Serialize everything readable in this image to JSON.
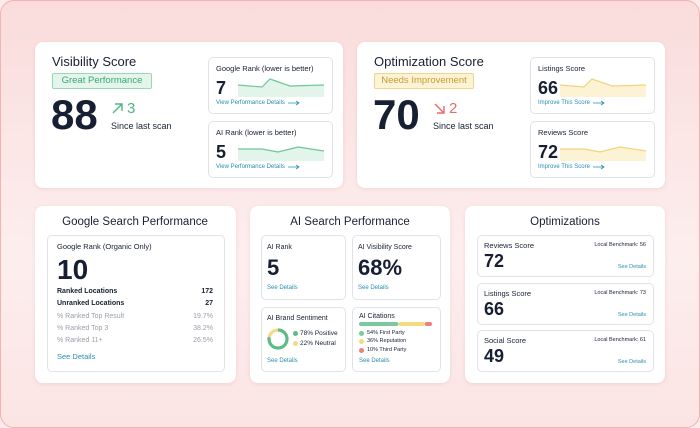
{
  "visibility": {
    "title": "Visibility Score",
    "badge": "Great Performance",
    "score": "88",
    "change": "3",
    "change_label": "Since last scan",
    "cards": [
      {
        "title": "Google Rank (lower is better)",
        "value": "7",
        "link": "View Performance Details"
      },
      {
        "title": "AI Rank (lower is better)",
        "value": "5",
        "link": "View Performance Details"
      }
    ]
  },
  "optimization": {
    "title": "Optimization Score",
    "badge": "Needs Improvement",
    "score": "70",
    "change": "2",
    "change_label": "Since last scan",
    "cards": [
      {
        "title": "Listings Score",
        "value": "66",
        "link": "Improve This Score"
      },
      {
        "title": "Reviews Score",
        "value": "72",
        "link": "Improve This Score"
      }
    ]
  },
  "google_search": {
    "title": "Google Search Performance",
    "box": {
      "title": "Google Rank (Organic Only)",
      "value": "10",
      "rows": [
        [
          "Ranked Locations",
          "172"
        ],
        [
          "Unranked Locations",
          "27"
        ],
        [
          "% Ranked Top Result",
          "19.7%"
        ],
        [
          "% Ranked Top 3",
          "38.2%"
        ],
        [
          "% Ranked 11+",
          "26.5%"
        ]
      ],
      "link": "See Details"
    }
  },
  "ai_search": {
    "title": "AI Search Performance",
    "rank": {
      "title": "AI Rank",
      "value": "5",
      "link": "See Details"
    },
    "visibility": {
      "title": "AI Visibility Score",
      "value": "68%",
      "link": "See Details"
    },
    "sentiment": {
      "title": "AI Brand Sentiment",
      "link": "See Details",
      "segments": [
        {
          "value": 78,
          "label": "78% Positive",
          "color": "#5dbb8a"
        },
        {
          "value": 22,
          "label": "22% Neutral",
          "color": "#f3d98a"
        }
      ]
    },
    "citations": {
      "title": "AI Citations",
      "link": "See Details",
      "segments": [
        {
          "value": 54,
          "label": "54% First Party",
          "color": "#7cc9a0"
        },
        {
          "value": 36,
          "label": "36% Reputation",
          "color": "#f2dc7e"
        },
        {
          "value": 10,
          "label": "10% Third Party",
          "color": "#ee7f7f"
        }
      ]
    }
  },
  "optimizations": {
    "title": "Optimizations",
    "items": [
      {
        "title": "Reviews Score",
        "benchmark": "Local Benchmark: 56",
        "value": "72",
        "link": "See Details"
      },
      {
        "title": "Listings Score",
        "benchmark": "Local Benchmark: 73",
        "value": "66",
        "link": "See Details"
      },
      {
        "title": "Social Score",
        "benchmark": "Local Benchmark: 61",
        "value": "49",
        "link": "See Details"
      }
    ]
  }
}
